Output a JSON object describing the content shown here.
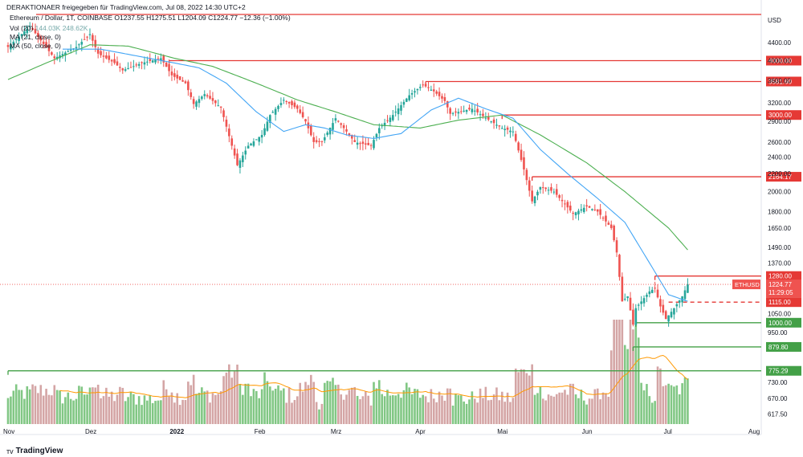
{
  "header": {
    "publisher": "DERAKTIONAER freigegeben für TradingView.com, Jul 08, 2022 14:30 UTC+2",
    "symbol_line": "Ethereum / Dollar, 1T, COINBASE",
    "ohlc": "O1237.55  H1275.51  L1204.09  C1224.77  −12.36 (−1.00%)",
    "vol_label": "Vol (20)",
    "vol_values": "144.03K  248.62K",
    "ma21_label": "MA (21, close, 0)",
    "ma50_label": "MA (50, close, 0)"
  },
  "footer": {
    "brand": "TradingView"
  },
  "colors": {
    "up": "#26a69a",
    "down": "#ef5350",
    "vol_up": "#81c784",
    "vol_down": "#d4a5a5",
    "ma21": "#42a5f5",
    "ma50": "#4caf50",
    "vol_ma": "#ff9800",
    "res": "#e53935",
    "sup": "#43a047"
  },
  "chart_data": {
    "type": "candlestick",
    "symbol": "ETHUSD",
    "currency_label": "USD",
    "y_scale": "log",
    "ylim": [
      585,
      5150
    ],
    "x_labels": [
      "Nov",
      "Dez",
      "2022",
      "Feb",
      "Mrz",
      "Apr",
      "Mai",
      "Jun",
      "Jul",
      "Aug"
    ],
    "y_ticks": [
      4400,
      4000,
      3600,
      3200,
      2900,
      2600,
      2400,
      2200,
      2000,
      1800,
      1650,
      1490,
      1370,
      1050,
      950,
      730,
      670,
      617.5
    ],
    "current_price": {
      "label": "ETHUSD",
      "value": "1224.77",
      "countdown": "11:29:05"
    },
    "horizontal_levels": [
      {
        "value": 4000,
        "label": "4000.00",
        "kind": "resistance",
        "from": "2021-12-30"
      },
      {
        "value": 3581.6,
        "label": "3581.60",
        "kind": "resistance",
        "from": "2022-04-03"
      },
      {
        "value": 3000,
        "label": "3000.00",
        "kind": "resistance",
        "from": "2022-05-01"
      },
      {
        "value": 2164.17,
        "label": "2164.17",
        "kind": "resistance",
        "from": "2022-05-12"
      },
      {
        "value": 1280,
        "label": "1280.00",
        "kind": "resistance",
        "from": "2022-06-26"
      },
      {
        "value": 1115,
        "label": "1115.00",
        "kind": "resistance-dashed",
        "from": "2022-07-01"
      },
      {
        "value": 1000,
        "label": "1000.00",
        "kind": "support",
        "from": "2022-06-19"
      },
      {
        "value": 879.8,
        "label": "879.80",
        "kind": "support",
        "from": "2022-06-18"
      },
      {
        "value": 775.29,
        "label": "775.29",
        "kind": "support",
        "from": "2021-11-01"
      }
    ],
    "price_path": [
      [
        "2021-11-01",
        4300
      ],
      [
        "2021-11-09",
        4800
      ],
      [
        "2021-11-18",
        4050
      ],
      [
        "2021-11-26",
        4300
      ],
      [
        "2021-12-01",
        4600
      ],
      [
        "2021-12-04",
        4150
      ],
      [
        "2021-12-10",
        3950
      ],
      [
        "2021-12-13",
        3800
      ],
      [
        "2021-12-20",
        3950
      ],
      [
        "2021-12-27",
        4050
      ],
      [
        "2021-12-31",
        3700
      ],
      [
        "2022-01-05",
        3550
      ],
      [
        "2022-01-08",
        3180
      ],
      [
        "2022-01-12",
        3350
      ],
      [
        "2022-01-18",
        3120
      ],
      [
        "2022-01-22",
        2550
      ],
      [
        "2022-01-24",
        2300
      ],
      [
        "2022-01-28",
        2550
      ],
      [
        "2022-02-02",
        2700
      ],
      [
        "2022-02-05",
        3000
      ],
      [
        "2022-02-10",
        3250
      ],
      [
        "2022-02-15",
        3100
      ],
      [
        "2022-02-18",
        2900
      ],
      [
        "2022-02-21",
        2600
      ],
      [
        "2022-02-24",
        2600
      ],
      [
        "2022-03-01",
        2950
      ],
      [
        "2022-03-04",
        2800
      ],
      [
        "2022-03-08",
        2600
      ],
      [
        "2022-03-14",
        2550
      ],
      [
        "2022-03-17",
        2800
      ],
      [
        "2022-03-22",
        3000
      ],
      [
        "2022-03-28",
        3330
      ],
      [
        "2022-04-02",
        3520
      ],
      [
        "2022-04-06",
        3400
      ],
      [
        "2022-04-10",
        3230
      ],
      [
        "2022-04-12",
        3020
      ],
      [
        "2022-04-20",
        3100
      ],
      [
        "2022-04-27",
        2900
      ],
      [
        "2022-05-01",
        2800
      ],
      [
        "2022-05-05",
        2750
      ],
      [
        "2022-05-09",
        2250
      ],
      [
        "2022-05-12",
        1900
      ],
      [
        "2022-05-15",
        2050
      ],
      [
        "2022-05-20",
        2000
      ],
      [
        "2022-05-27",
        1780
      ],
      [
        "2022-06-01",
        1850
      ],
      [
        "2022-06-05",
        1800
      ],
      [
        "2022-06-10",
        1650
      ],
      [
        "2022-06-12",
        1450
      ],
      [
        "2022-06-14",
        1120
      ],
      [
        "2022-06-16",
        1150
      ],
      [
        "2022-06-18",
        990
      ],
      [
        "2022-06-19",
        1080
      ],
      [
        "2022-06-24",
        1180
      ],
      [
        "2022-06-26",
        1200
      ],
      [
        "2022-06-28",
        1090
      ],
      [
        "2022-06-30",
        1020
      ],
      [
        "2022-07-03",
        1080
      ],
      [
        "2022-07-06",
        1150
      ],
      [
        "2022-07-08",
        1224.77
      ]
    ],
    "ma21_path": [
      [
        "2021-11-21",
        4250
      ],
      [
        "2021-12-05",
        4250
      ],
      [
        "2021-12-20",
        4080
      ],
      [
        "2022-01-01",
        3950
      ],
      [
        "2022-01-10",
        3850
      ],
      [
        "2022-01-20",
        3550
      ],
      [
        "2022-01-31",
        3050
      ],
      [
        "2022-02-10",
        2750
      ],
      [
        "2022-02-18",
        2850
      ],
      [
        "2022-02-25",
        2800
      ],
      [
        "2022-03-05",
        2700
      ],
      [
        "2022-03-15",
        2650
      ],
      [
        "2022-03-25",
        2720
      ],
      [
        "2022-04-05",
        3080
      ],
      [
        "2022-04-15",
        3280
      ],
      [
        "2022-04-25",
        3100
      ],
      [
        "2022-05-05",
        2950
      ],
      [
        "2022-05-15",
        2500
      ],
      [
        "2022-05-25",
        2200
      ],
      [
        "2022-06-05",
        1930
      ],
      [
        "2022-06-15",
        1700
      ],
      [
        "2022-06-25",
        1340
      ],
      [
        "2022-07-01",
        1160
      ],
      [
        "2022-07-08",
        1120
      ]
    ],
    "ma50_path": [
      [
        "2021-11-01",
        3620
      ],
      [
        "2021-11-15",
        3950
      ],
      [
        "2021-12-01",
        4350
      ],
      [
        "2021-12-15",
        4320
      ],
      [
        "2022-01-01",
        4050
      ],
      [
        "2022-01-15",
        3880
      ],
      [
        "2022-01-31",
        3550
      ],
      [
        "2022-02-15",
        3250
      ],
      [
        "2022-03-01",
        3050
      ],
      [
        "2022-03-15",
        2850
      ],
      [
        "2022-04-01",
        2800
      ],
      [
        "2022-04-15",
        2920
      ],
      [
        "2022-05-01",
        3000
      ],
      [
        "2022-05-15",
        2700
      ],
      [
        "2022-06-01",
        2330
      ],
      [
        "2022-06-15",
        2000
      ],
      [
        "2022-07-01",
        1650
      ],
      [
        "2022-07-08",
        1470
      ]
    ]
  }
}
